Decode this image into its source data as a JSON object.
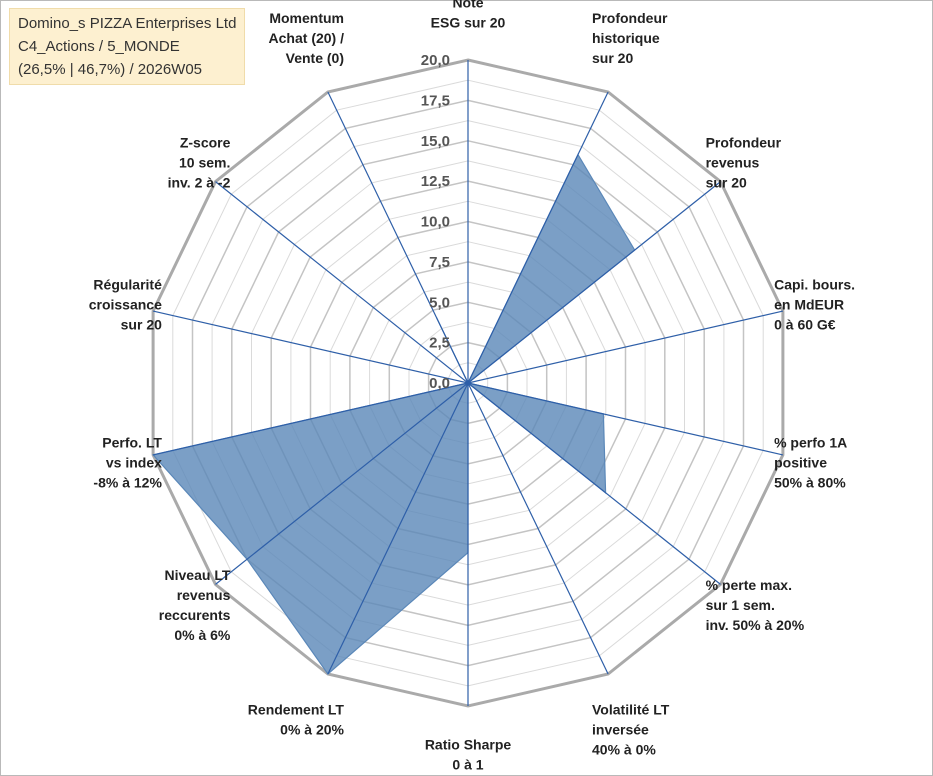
{
  "header": {
    "line1": "Domino_s PIZZA Enterprises Ltd",
    "line2": "C4_Actions / 5_MONDE",
    "line3": "(26,5% | 46,7%) / 2026W05"
  },
  "colors": {
    "fill": "#5a87b8",
    "spoke": "#2e5fa8",
    "ring": "#c0c0c0",
    "outer_ring": "#aaaaaa",
    "title_bg": "#fdf0d0"
  },
  "chart_data": {
    "type": "radar",
    "rmin": 0,
    "rmax": 20,
    "tick_values": [
      0,
      2.5,
      5,
      7.5,
      10,
      12.5,
      15,
      17.5,
      20
    ],
    "tick_labels": [
      "0,0",
      "2,5",
      "5,0",
      "7,5",
      "10,0",
      "12,5",
      "15,0",
      "17,5",
      "20,0"
    ],
    "minor_step": 1.25,
    "categories": [
      [
        "Note",
        "ESG sur 20"
      ],
      [
        "Profondeur",
        "historique",
        "sur 20"
      ],
      [
        "Profondeur",
        "revenus",
        "sur 20"
      ],
      [
        "Capi. bours.",
        "en MdEUR",
        "0 à 60 G€"
      ],
      [
        "% perfo 1A",
        "positive",
        "50% à 80%"
      ],
      [
        "% perte max.",
        "sur 1 sem.",
        "inv. 50% à 20%"
      ],
      [
        "Volatilité LT",
        "inversée",
        "40% à 0%"
      ],
      [
        "Ratio Sharpe",
        "0 à 1"
      ],
      [
        "Rendement LT",
        "0% à 20%"
      ],
      [
        "Niveau LT",
        "revenus",
        "reccurents",
        "0% à 6%"
      ],
      [
        "Perfo. LT",
        "vs index",
        "-8% à 12%"
      ],
      [
        "Régularité",
        "croissance",
        "sur 20"
      ],
      [
        "Z-score",
        "10 sem.",
        "inv. 2 à -2"
      ],
      [
        "Momentum",
        "Achat (20) /",
        "Vente (0)"
      ]
    ],
    "series": [
      {
        "values": [
          0,
          15.7,
          13.2,
          0,
          8.6,
          10.9,
          0,
          10.5,
          20,
          17.5,
          20,
          0,
          0,
          4.5
        ]
      }
    ]
  }
}
